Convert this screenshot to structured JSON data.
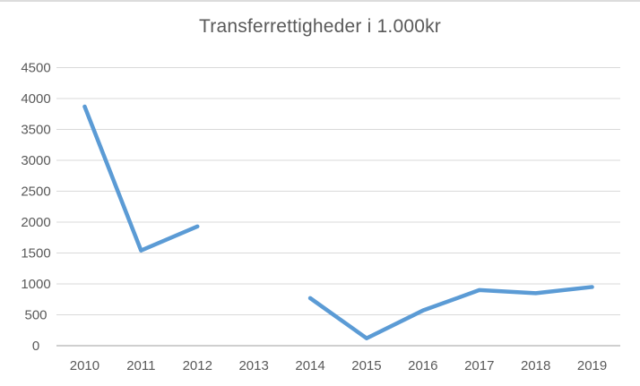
{
  "chart_data": {
    "type": "line",
    "title": "Transferrettigheder i 1.000kr",
    "categories": [
      "2010",
      "2011",
      "2012",
      "2013",
      "2014",
      "2015",
      "2016",
      "2017",
      "2018",
      "2019"
    ],
    "series": [
      {
        "values": [
          3870,
          1540,
          1930,
          null,
          770,
          120,
          570,
          900,
          850,
          950
        ]
      }
    ],
    "xlabel": "",
    "ylabel": "",
    "ylim": [
      0,
      4500
    ],
    "ytick_step": 500,
    "grid": true,
    "legend_position": "none",
    "colors": {
      "line": "#5b9bd5",
      "gridline": "#d9d9d9",
      "axis_line": "#bfbfbf",
      "text": "#595959",
      "background": "#ffffff"
    }
  }
}
